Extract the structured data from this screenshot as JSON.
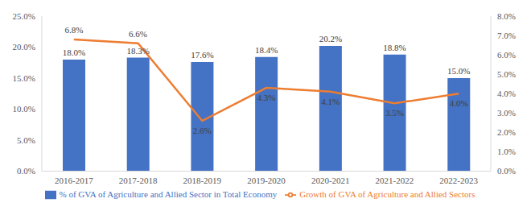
{
  "chart_data": {
    "type": "bar",
    "categories": [
      "2016-2017",
      "2017-2018",
      "2018-2019",
      "2019-2020",
      "2020-2021",
      "2021-2022",
      "2022-2023"
    ],
    "series": [
      {
        "name": "% of GVA of Agriculture and Allied Sector in Total Economy",
        "type": "bar",
        "color": "#4472c4",
        "values": [
          18.0,
          18.3,
          17.6,
          18.4,
          20.2,
          18.8,
          15.0
        ],
        "value_labels": [
          "18.0%",
          "18.3%",
          "17.6%",
          "18.4%",
          "20.2%",
          "18.8%",
          "15.0%"
        ]
      },
      {
        "name": "Growth of GVA of Agriculture and Allied Sectors",
        "type": "line",
        "axis": "y2",
        "color": "#ed7d31",
        "marker": "none",
        "values": [
          6.8,
          6.6,
          2.6,
          4.3,
          4.1,
          3.5,
          4.0
        ],
        "value_labels": [
          "6.8%",
          "6.6%",
          "2.6%",
          "4.3%",
          "4.1%",
          "3.5%",
          "4.0%"
        ]
      }
    ],
    "ylim": [
      0,
      25
    ],
    "yticks": [
      {
        "value": 0,
        "label": "0.0%"
      },
      {
        "value": 5,
        "label": "5.0%"
      },
      {
        "value": 10,
        "label": "10.0%"
      },
      {
        "value": 15,
        "label": "15.0%"
      },
      {
        "value": 20,
        "label": "20.0%"
      },
      {
        "value": 25,
        "label": "25.0%"
      }
    ],
    "y2lim": [
      0,
      8
    ],
    "y2ticks": [
      {
        "value": 0,
        "label": "0.0%"
      },
      {
        "value": 1,
        "label": "1.0%"
      },
      {
        "value": 2,
        "label": "2.0%"
      },
      {
        "value": 3,
        "label": "3.0%"
      },
      {
        "value": 4,
        "label": "4.0%"
      },
      {
        "value": 5,
        "label": "5.0%"
      },
      {
        "value": 6,
        "label": "6.0%"
      },
      {
        "value": 7,
        "label": "7.0%"
      },
      {
        "value": 8,
        "label": "8.0%"
      }
    ],
    "data_labels": true,
    "legend": "bottom",
    "grid": false
  }
}
